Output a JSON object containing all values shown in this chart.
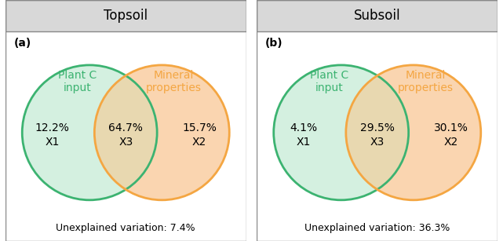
{
  "panels": [
    {
      "title": "Topsoil",
      "label": "(a)",
      "left_label": "Plant C\ninput",
      "right_label": "Mineral\nproperties",
      "x1_pct": "12.2%",
      "x1_var": "X1",
      "x3_pct": "64.7%",
      "x3_var": "X3",
      "x2_pct": "15.7%",
      "x2_var": "X2",
      "unexplained": "Unexplained variation: 7.4%"
    },
    {
      "title": "Subsoil",
      "label": "(b)",
      "left_label": "Plant C\ninput",
      "right_label": "Mineral\nproperties",
      "x1_pct": "4.1%",
      "x1_var": "X1",
      "x3_pct": "29.5%",
      "x3_var": "X3",
      "x2_pct": "30.1%",
      "x2_var": "X2",
      "unexplained": "Unexplained variation: 36.3%"
    }
  ],
  "green_color": "#3cb371",
  "green_fill": "#d4f0e0",
  "orange_color": "#f4a642",
  "orange_fill": "#fad5b0",
  "overlap_fill": "#e8d8b0",
  "title_bg": "#d8d8d8",
  "border_color": "#888888",
  "green_label_color": "#3cb371",
  "orange_label_color": "#f4a642",
  "title_fontsize": 12,
  "label_fontsize": 10,
  "pct_fontsize": 10,
  "unexplained_fontsize": 9
}
